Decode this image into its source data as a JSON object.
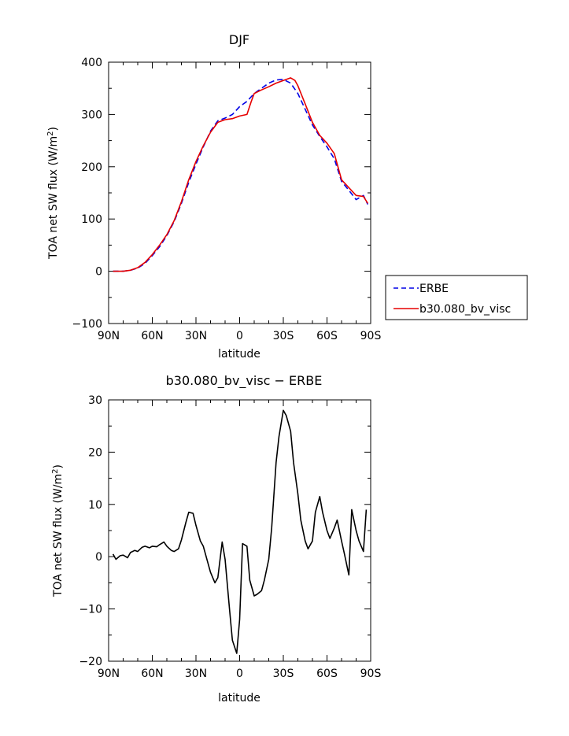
{
  "chart_data": [
    {
      "type": "line",
      "title": "DJF",
      "xlabel": "latitude",
      "ylabel_main": "TOA net SW flux (W/m",
      "ylabel_sup": "2",
      "ylabel_tail": ")",
      "x_ticks": [
        "90N",
        "60N",
        "30N",
        "0",
        "30S",
        "60S",
        "90S"
      ],
      "y_ticks": [
        "400",
        "300",
        "200",
        "100",
        "0",
        "−100"
      ],
      "xlim": [
        -90,
        90
      ],
      "ylim": [
        -100,
        400
      ],
      "legend_position": "right, outside plot",
      "series": [
        {
          "name": "ERBE",
          "color": "#0000e6",
          "dash": "dashed",
          "x": [
            -87,
            -85,
            -80,
            -75,
            -70,
            -65,
            -60,
            -55,
            -50,
            -45,
            -40,
            -35,
            -30,
            -25,
            -20,
            -15,
            -10,
            -5,
            0,
            5,
            10,
            15,
            20,
            25,
            30,
            35,
            40,
            45,
            50,
            55,
            60,
            65,
            70,
            75,
            80,
            85,
            88
          ],
          "values": [
            0,
            0,
            0,
            2,
            6,
            15,
            30,
            47,
            68,
            95,
            130,
            170,
            205,
            238,
            268,
            288,
            293,
            300,
            315,
            325,
            340,
            350,
            360,
            366,
            367,
            360,
            340,
            310,
            280,
            258,
            238,
            215,
            172,
            155,
            137,
            145,
            128
          ]
        },
        {
          "name": "b30.080_bv_visc",
          "color": "#e60000",
          "dash": "solid",
          "x": [
            -87,
            -85,
            -80,
            -75,
            -70,
            -65,
            -60,
            -55,
            -50,
            -45,
            -40,
            -35,
            -30,
            -25,
            -20,
            -15,
            -10,
            -5,
            0,
            5,
            8,
            10,
            15,
            20,
            25,
            30,
            35,
            38,
            40,
            45,
            50,
            55,
            60,
            65,
            70,
            75,
            80,
            85,
            88
          ],
          "values": [
            0,
            0,
            0,
            2,
            7,
            17,
            32,
            50,
            70,
            97,
            133,
            175,
            210,
            240,
            266,
            285,
            290,
            292,
            297,
            300,
            325,
            340,
            347,
            353,
            360,
            365,
            370,
            365,
            355,
            320,
            285,
            260,
            245,
            225,
            175,
            160,
            145,
            143,
            130
          ]
        }
      ]
    },
    {
      "type": "line",
      "title": "b30.080_bv_visc − ERBE",
      "xlabel": "latitude",
      "ylabel_main": "TOA net SW flux (W/m",
      "ylabel_sup": "2",
      "ylabel_tail": ")",
      "x_ticks": [
        "90N",
        "60N",
        "30N",
        "0",
        "30S",
        "60S",
        "90S"
      ],
      "y_ticks": [
        "30",
        "20",
        "10",
        "0",
        "−10",
        "−20"
      ],
      "xlim": [
        -90,
        90
      ],
      "ylim": [
        -20,
        30
      ],
      "series": [
        {
          "color": "#000000",
          "x": [
            -87,
            -85,
            -82,
            -80,
            -77,
            -75,
            -72,
            -70,
            -67,
            -65,
            -62,
            -60,
            -57,
            -55,
            -52,
            -50,
            -47,
            -45,
            -42,
            -40,
            -37,
            -35,
            -32,
            -30,
            -27,
            -25,
            -22,
            -20,
            -17,
            -15,
            -12,
            -10,
            -7,
            -5,
            -2,
            0,
            2,
            5,
            7,
            10,
            12,
            15,
            17,
            20,
            22,
            25,
            27,
            30,
            32,
            35,
            37,
            40,
            42,
            45,
            47,
            50,
            52,
            55,
            57,
            60,
            62,
            65,
            67,
            70,
            72,
            75,
            77,
            80,
            82,
            85,
            87
          ],
          "values": [
            0.5,
            -0.5,
            0.2,
            0.3,
            -0.2,
            0.8,
            1.2,
            1.0,
            1.8,
            2.0,
            1.7,
            2.0,
            1.9,
            2.3,
            2.8,
            2.0,
            1.2,
            1.0,
            1.5,
            3.2,
            6.5,
            8.5,
            8.3,
            6.0,
            3.0,
            2.0,
            -1.0,
            -3.0,
            -5.0,
            -4.0,
            2.8,
            -0.5,
            -10.0,
            -16.0,
            -18.5,
            -12.0,
            2.5,
            2.0,
            -4.5,
            -7.5,
            -7.2,
            -6.5,
            -4.5,
            -0.5,
            5.5,
            18.0,
            23.0,
            28.0,
            27.0,
            24.0,
            18.0,
            12.0,
            7.0,
            3.0,
            1.5,
            3.0,
            8.5,
            11.5,
            8.5,
            5.0,
            3.5,
            5.5,
            7.0,
            3.0,
            0.5,
            -3.5,
            9.0,
            5.0,
            3.0,
            1.0,
            9.0
          ]
        }
      ]
    }
  ]
}
